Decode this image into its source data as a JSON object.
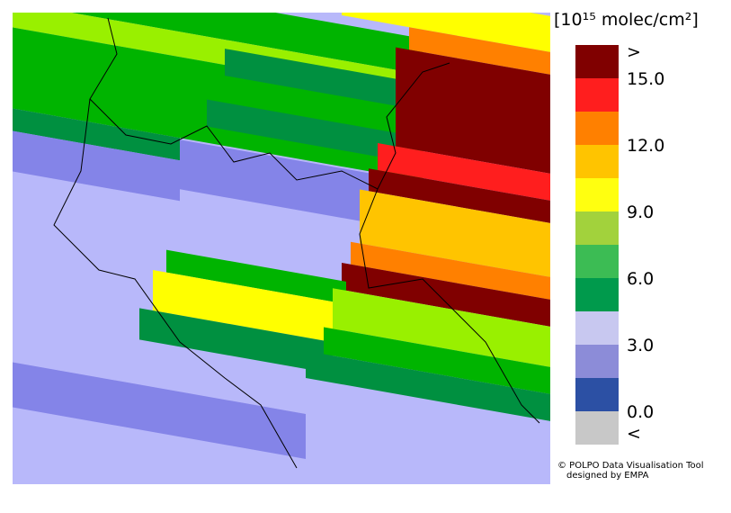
{
  "legend": {
    "title": "[10¹⁵ molec/cm²]",
    "labels": [
      ">",
      "15.0",
      "12.0",
      "9.0",
      "6.0",
      "3.0",
      "0.0",
      "<"
    ],
    "colors": [
      "#800000",
      "#ff1e1e",
      "#ff8000",
      "#ffc400",
      "#ffff10",
      "#a2d23c",
      "#3cbc54",
      "#009a4c",
      "#c8c8f0",
      "#8c8cd8",
      "#2c50a4",
      "#c8c8c8"
    ]
  },
  "credits": [
    "© POLPO Data Visualisation Tool",
    "designed by EMPA"
  ]
}
